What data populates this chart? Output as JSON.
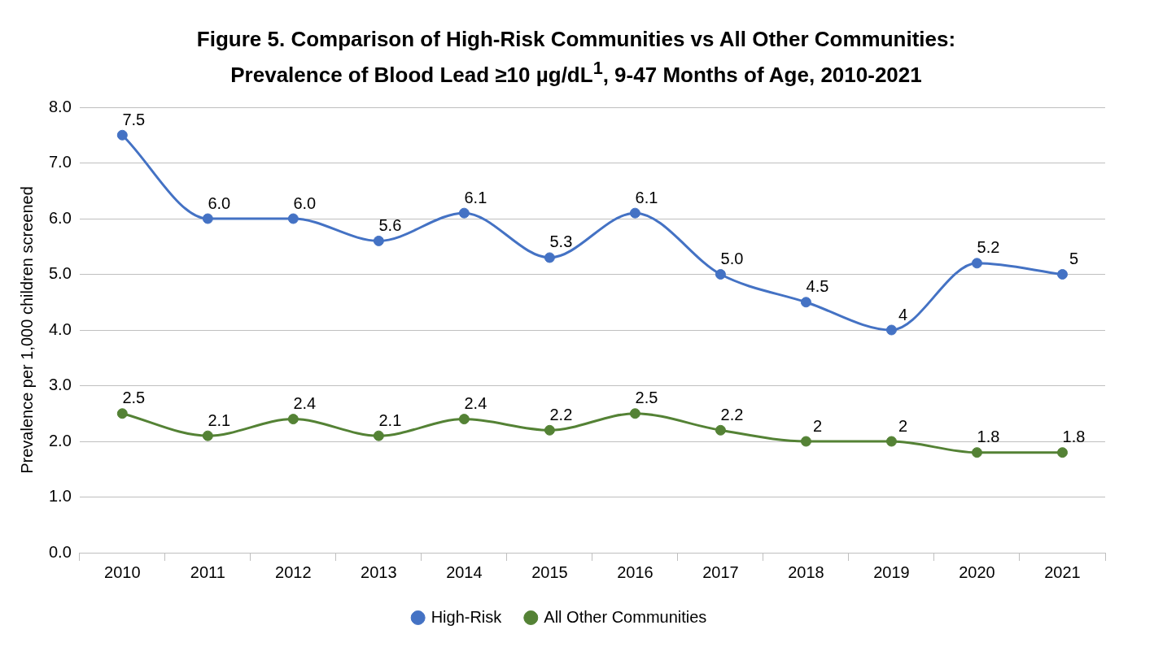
{
  "chart_data": {
    "type": "line",
    "title": "Figure 5. Comparison of High-Risk Communities vs All Other Communities: Prevalence of Blood Lead ≥10 µg/dL$^{1}$, 9-47 Months of Age, 2010-2021",
    "ylabel": "Prevalence per 1,000 children screened",
    "categories": [
      "2010",
      "2011",
      "2012",
      "2013",
      "2014",
      "2015",
      "2016",
      "2017",
      "2018",
      "2019",
      "2020",
      "2021"
    ],
    "series": [
      {
        "name": "High-Risk",
        "color": "#4472c4",
        "values": [
          7.5,
          6.0,
          6.0,
          5.6,
          6.1,
          5.3,
          6.1,
          5.0,
          4.5,
          4,
          5.2,
          5
        ],
        "value_labels": [
          "7.5",
          "6.0",
          "6.0",
          "5.6",
          "6.1",
          "5.3",
          "6.1",
          "5.0",
          "4.5",
          "4",
          "5.2",
          "5"
        ]
      },
      {
        "name": "All Other Communities",
        "color": "#548235",
        "values": [
          2.5,
          2.1,
          2.4,
          2.1,
          2.4,
          2.2,
          2.5,
          2.2,
          2,
          2,
          1.8,
          1.8
        ],
        "value_labels": [
          "2.5",
          "2.1",
          "2.4",
          "2.1",
          "2.4",
          "2.2",
          "2.5",
          "2.2",
          "2",
          "2",
          "1.8",
          "1.8"
        ]
      }
    ],
    "ylim": [
      0,
      8
    ],
    "yticks": [
      {
        "value": 0,
        "label": "0.0"
      },
      {
        "value": 1,
        "label": "1.0"
      },
      {
        "value": 2,
        "label": "2.0"
      },
      {
        "value": 3,
        "label": "3.0"
      },
      {
        "value": 4,
        "label": "4.0"
      },
      {
        "value": 5,
        "label": "5.0"
      },
      {
        "value": 6,
        "label": "6.0"
      },
      {
        "value": 7,
        "label": "7.0"
      },
      {
        "value": 8,
        "label": "8.0"
      }
    ],
    "grid": "y",
    "legend": "bottom",
    "marker": "circle",
    "line_style": "solid"
  }
}
